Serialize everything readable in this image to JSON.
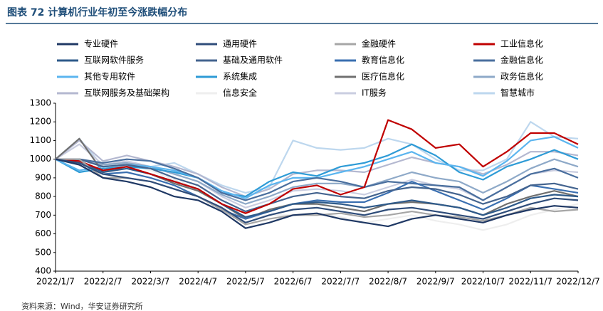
{
  "chart_data": {
    "type": "line",
    "title": "图表 72 计算机行业年初至今涨跌幅分布",
    "source": "资料来源：Wind，华安证券研究所",
    "categories": [
      "2022/1/7",
      null,
      "2022/2/7",
      null,
      "2022/3/7",
      null,
      "2022/4/7",
      null,
      "2022/5/7",
      null,
      "2022/6/7",
      null,
      "2022/7/7",
      null,
      "2022/8/7",
      null,
      "2022/9/7",
      null,
      "2022/10/7",
      null,
      "2022/11/7",
      null,
      "2022/12/7"
    ],
    "ylim": [
      400,
      1300
    ],
    "yticks": [
      400,
      500,
      600,
      700,
      800,
      900,
      1000,
      1100,
      1200,
      1300
    ],
    "series": [
      {
        "name": "专业硬件",
        "color": "#1f3864",
        "values": [
          1000,
          970,
          900,
          880,
          850,
          800,
          780,
          720,
          630,
          660,
          700,
          710,
          680,
          660,
          640,
          680,
          700,
          680,
          660,
          700,
          730,
          750,
          740
        ]
      },
      {
        "name": "通用硬件",
        "color": "#2f4d7a",
        "values": [
          1000,
          980,
          920,
          900,
          880,
          840,
          800,
          740,
          660,
          700,
          730,
          740,
          720,
          700,
          730,
          740,
          720,
          700,
          680,
          720,
          760,
          790,
          780
        ]
      },
      {
        "name": "金融硬件",
        "color": "#a6a6a6",
        "values": [
          1000,
          1000,
          900,
          900,
          880,
          840,
          800,
          730,
          650,
          680,
          700,
          700,
          710,
          690,
          700,
          720,
          700,
          690,
          670,
          700,
          740,
          720,
          730
        ]
      },
      {
        "name": "工业信息化",
        "color": "#c00000",
        "values": [
          1000,
          990,
          940,
          960,
          920,
          880,
          840,
          760,
          710,
          760,
          840,
          860,
          810,
          850,
          1210,
          1160,
          1060,
          1080,
          960,
          1040,
          1140,
          1140,
          1080
        ]
      },
      {
        "name": "互联网软件服务",
        "color": "#2e5a8a",
        "values": [
          1000,
          990,
          930,
          950,
          920,
          880,
          840,
          760,
          690,
          720,
          760,
          770,
          760,
          740,
          760,
          780,
          760,
          740,
          700,
          740,
          790,
          810,
          800
        ]
      },
      {
        "name": "基础及通用软件",
        "color": "#44648f",
        "values": [
          1000,
          1000,
          960,
          970,
          950,
          900,
          860,
          780,
          720,
          760,
          800,
          820,
          800,
          790,
          830,
          850,
          840,
          810,
          760,
          800,
          860,
          870,
          840
        ]
      },
      {
        "name": "教育信息化",
        "color": "#3a6fb0",
        "values": [
          1000,
          980,
          920,
          930,
          900,
          860,
          800,
          730,
          680,
          720,
          760,
          780,
          770,
          770,
          820,
          880,
          830,
          780,
          730,
          790,
          860,
          840,
          820
        ]
      },
      {
        "name": "金融信息化",
        "color": "#4a6f9e",
        "values": [
          1000,
          1000,
          980,
          1000,
          990,
          950,
          900,
          820,
          780,
          820,
          880,
          900,
          880,
          850,
          880,
          870,
          860,
          850,
          780,
          850,
          920,
          950,
          900
        ]
      },
      {
        "name": "其他专用软件",
        "color": "#5bb5ef",
        "values": [
          1000,
          940,
          960,
          970,
          960,
          940,
          900,
          830,
          790,
          860,
          900,
          900,
          930,
          960,
          1000,
          1040,
          980,
          960,
          910,
          990,
          1100,
          1120,
          1060
        ]
      },
      {
        "name": "系统集成",
        "color": "#2e9bd6",
        "values": [
          1000,
          930,
          950,
          960,
          950,
          930,
          900,
          820,
          800,
          880,
          930,
          910,
          960,
          980,
          1020,
          1080,
          1020,
          930,
          890,
          960,
          1000,
          1050,
          1000
        ]
      },
      {
        "name": "医疗信息化",
        "color": "#707070",
        "values": [
          1000,
          1110,
          930,
          960,
          920,
          870,
          830,
          760,
          680,
          730,
          760,
          760,
          740,
          720,
          760,
          770,
          760,
          740,
          700,
          760,
          800,
          830,
          800
        ]
      },
      {
        "name": "政务信息化",
        "color": "#8ea9c8",
        "values": [
          1000,
          1000,
          970,
          980,
          960,
          920,
          880,
          810,
          760,
          800,
          850,
          870,
          870,
          850,
          890,
          930,
          900,
          880,
          820,
          880,
          950,
          1000,
          960
        ]
      },
      {
        "name": "互联网服务及基础架构",
        "color": "#b4b8d0",
        "values": [
          1000,
          1100,
          990,
          1020,
          990,
          960,
          920,
          850,
          800,
          840,
          920,
          940,
          940,
          930,
          970,
          1010,
          980,
          960,
          920,
          970,
          1040,
          1040,
          1020
        ]
      },
      {
        "name": "信息安全",
        "color": "#eeeeee",
        "values": [
          1000,
          1000,
          960,
          970,
          940,
          890,
          840,
          760,
          680,
          700,
          700,
          710,
          690,
          660,
          680,
          700,
          670,
          650,
          620,
          650,
          700,
          730,
          760
        ]
      },
      {
        "name": "IT服务",
        "color": "#c9cde0",
        "values": [
          1000,
          1080,
          970,
          990,
          960,
          920,
          880,
          800,
          740,
          780,
          830,
          840,
          830,
          810,
          850,
          890,
          860,
          840,
          780,
          850,
          920,
          940,
          930
        ]
      },
      {
        "name": "智慧城市",
        "color": "#bdd7ee",
        "values": [
          1000,
          1110,
          960,
          990,
          960,
          980,
          920,
          860,
          820,
          850,
          1100,
          1060,
          1050,
          1060,
          1110,
          1080,
          1000,
          940,
          940,
          1000,
          1200,
          1120,
          1110
        ]
      }
    ]
  }
}
